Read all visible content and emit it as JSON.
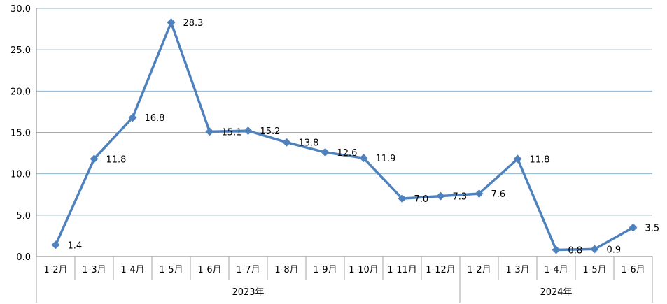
{
  "chart_data": {
    "type": "line",
    "categories": [
      "1-2月",
      "1-3月",
      "1-4月",
      "1-5月",
      "1-6月",
      "1-7月",
      "1-8月",
      "1-9月",
      "1-10月",
      "1-11月",
      "1-12月",
      "1-2月",
      "1-3月",
      "1-4月",
      "1-5月",
      "1-6月"
    ],
    "groups": [
      {
        "label": "2023年",
        "span": 11
      },
      {
        "label": "2024年",
        "span": 5
      }
    ],
    "series": [
      {
        "values": [
          1.4,
          11.8,
          16.8,
          28.3,
          15.1,
          15.2,
          13.8,
          12.6,
          11.9,
          7.0,
          7.3,
          7.6,
          11.8,
          0.8,
          0.9,
          3.5
        ],
        "labels": [
          "1.4",
          "11.8",
          "16.8",
          "28.3",
          "15.1",
          "15.2",
          "13.8",
          "12.6",
          "11.9",
          "7.0",
          "7.3",
          "7.6",
          "11.8",
          "0.8",
          "0.9",
          "3.5"
        ],
        "color": "#4f81bd"
      }
    ],
    "ylim": [
      0,
      30
    ],
    "yticks": [
      "0.0",
      "5.0",
      "10.0",
      "15.0",
      "20.0",
      "25.0",
      "30.0"
    ],
    "grid": true,
    "legend": "none",
    "title": "",
    "xlabel": "",
    "ylabel": ""
  }
}
